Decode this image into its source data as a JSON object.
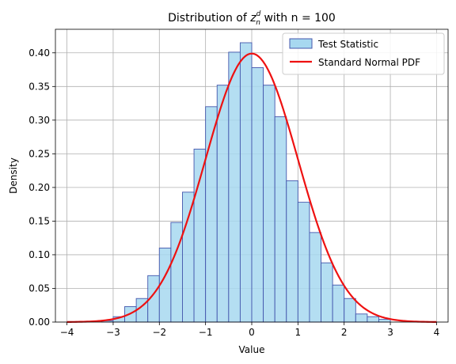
{
  "chart_data": {
    "type": "bar",
    "title_prefix": "Distribution of ",
    "title_symbol": "z",
    "title_sub": "n",
    "title_sup": "d",
    "title_suffix": " with n = 100",
    "xlabel": "Value",
    "ylabel": "Density",
    "xlim": [
      -4.25,
      4.25
    ],
    "ylim": [
      0,
      0.435
    ],
    "xticks": [
      -4,
      -3,
      -2,
      -1,
      0,
      1,
      2,
      3,
      4
    ],
    "yticks": [
      0.0,
      0.05,
      0.1,
      0.15,
      0.2,
      0.25,
      0.3,
      0.35,
      0.4
    ],
    "xtick_labels": [
      "−4",
      "−3",
      "−2",
      "−1",
      "0",
      "1",
      "2",
      "3",
      "4"
    ],
    "ytick_labels": [
      "0.00",
      "0.05",
      "0.10",
      "0.15",
      "0.20",
      "0.25",
      "0.30",
      "0.35",
      "0.40"
    ],
    "grid": true,
    "legend_placement": "top-right",
    "histogram": {
      "name": "Test Statistic",
      "bin_edges": [
        -3.25,
        -3.0,
        -2.75,
        -2.5,
        -2.25,
        -2.0,
        -1.75,
        -1.5,
        -1.25,
        -1.0,
        -0.75,
        -0.5,
        -0.25,
        0.0,
        0.25,
        0.5,
        0.75,
        1.0,
        1.25,
        1.5,
        1.75,
        2.0,
        2.25,
        2.5,
        2.75,
        3.0
      ],
      "values": [
        0.002,
        0.008,
        0.023,
        0.035,
        0.069,
        0.11,
        0.148,
        0.193,
        0.257,
        0.32,
        0.352,
        0.401,
        0.415,
        0.378,
        0.352,
        0.305,
        0.21,
        0.178,
        0.133,
        0.088,
        0.055,
        0.035,
        0.012,
        0.008,
        0.004
      ],
      "fill_color": "#a7d8f0",
      "edge_color": "#4457ad"
    },
    "series": [
      {
        "name": "Standard Normal PDF",
        "function": "standard_normal_pdf",
        "x_range": [
          -4,
          4
        ],
        "color": "#ee1111"
      }
    ]
  }
}
